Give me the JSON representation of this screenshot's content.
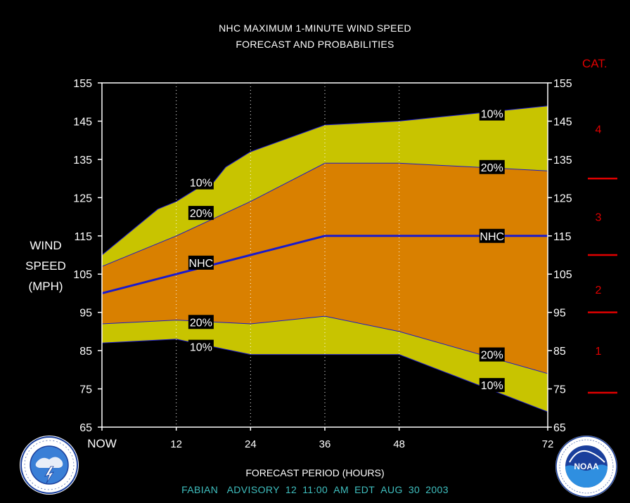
{
  "chart_data": {
    "type": "area",
    "title": "NHC MAXIMUM 1-MINUTE WIND SPEED",
    "subtitle": "FORECAST AND PROBABILITIES",
    "ylabel": [
      "WIND",
      "SPEED",
      "(MPH)"
    ],
    "xlabel": "FORECAST PERIOD (HOURS)",
    "x_tick_labels": [
      "NOW",
      "12",
      "24",
      "36",
      "48",
      "72"
    ],
    "x_ticks": [
      0,
      12,
      24,
      36,
      48,
      72
    ],
    "xlim": [
      0,
      72
    ],
    "ylim": [
      65,
      155
    ],
    "y_ticks": [
      65,
      75,
      85,
      95,
      105,
      115,
      125,
      135,
      145,
      155
    ],
    "grid": "dotted vertical at 12, 24, 36, 48",
    "series": [
      {
        "name": "10%",
        "role": "upper",
        "x": [
          0,
          9,
          12,
          16,
          18,
          20,
          24,
          36,
          48,
          60,
          72
        ],
        "values": [
          110,
          122,
          124,
          128,
          129,
          133,
          137,
          144,
          145,
          147,
          149
        ]
      },
      {
        "name": "20%",
        "role": "upper",
        "x": [
          0,
          12,
          24,
          36,
          48,
          72
        ],
        "values": [
          107,
          115,
          124,
          134,
          134,
          132
        ]
      },
      {
        "name": "NHC",
        "x": [
          0,
          12,
          24,
          36,
          48,
          72
        ],
        "values": [
          100,
          105,
          110,
          115,
          115,
          115
        ]
      },
      {
        "name": "20%",
        "role": "lower",
        "x": [
          0,
          12,
          24,
          36,
          48,
          72
        ],
        "values": [
          92,
          93,
          92,
          94,
          90,
          79
        ]
      },
      {
        "name": "10%",
        "role": "lower",
        "x": [
          0,
          12,
          24,
          36,
          48,
          72
        ],
        "values": [
          87,
          88,
          84,
          84,
          84,
          69
        ]
      }
    ],
    "data_labels": [
      {
        "text": "10%",
        "x": 16,
        "y": 129
      },
      {
        "text": "20%",
        "x": 16,
        "y": 121
      },
      {
        "text": "NHC",
        "x": 16,
        "y": 108
      },
      {
        "text": "20%",
        "x": 16,
        "y": 92.5
      },
      {
        "text": "10%",
        "x": 16,
        "y": 86
      },
      {
        "text": "10%",
        "x": 63,
        "y": 147
      },
      {
        "text": "20%",
        "x": 63,
        "y": 133
      },
      {
        "text": "NHC",
        "x": 63,
        "y": 115
      },
      {
        "text": "20%",
        "x": 63,
        "y": 84
      },
      {
        "text": "10%",
        "x": 63,
        "y": 76
      }
    ],
    "category_scale": {
      "title": "CAT.",
      "categories": [
        {
          "label": "4",
          "y": 143
        },
        {
          "label": "3",
          "y": 120
        },
        {
          "label": "2",
          "y": 101
        },
        {
          "label": "1",
          "y": 85
        }
      ],
      "boundaries": [
        130,
        110,
        95,
        74
      ]
    },
    "colors": {
      "band_10": "#c8c400",
      "band_20": "#d98000",
      "nhc_line": "#1a1acc",
      "axis": "#ffffff",
      "category": "#e00000",
      "advisory_text": "#3fbfbf"
    }
  },
  "footer": {
    "storm": "FABIAN",
    "advisory": "ADVISORY",
    "number": "12",
    "time": "11:00",
    "ampm": "AM",
    "zone": "EDT",
    "month": "AUG",
    "day": "30",
    "year": "2003"
  },
  "logos": {
    "left": {
      "text": "NATIONAL WEATHER SERVICE",
      "icon": "nws-logo"
    },
    "right": {
      "text": "NOAA",
      "icon": "noaa-logo"
    }
  }
}
